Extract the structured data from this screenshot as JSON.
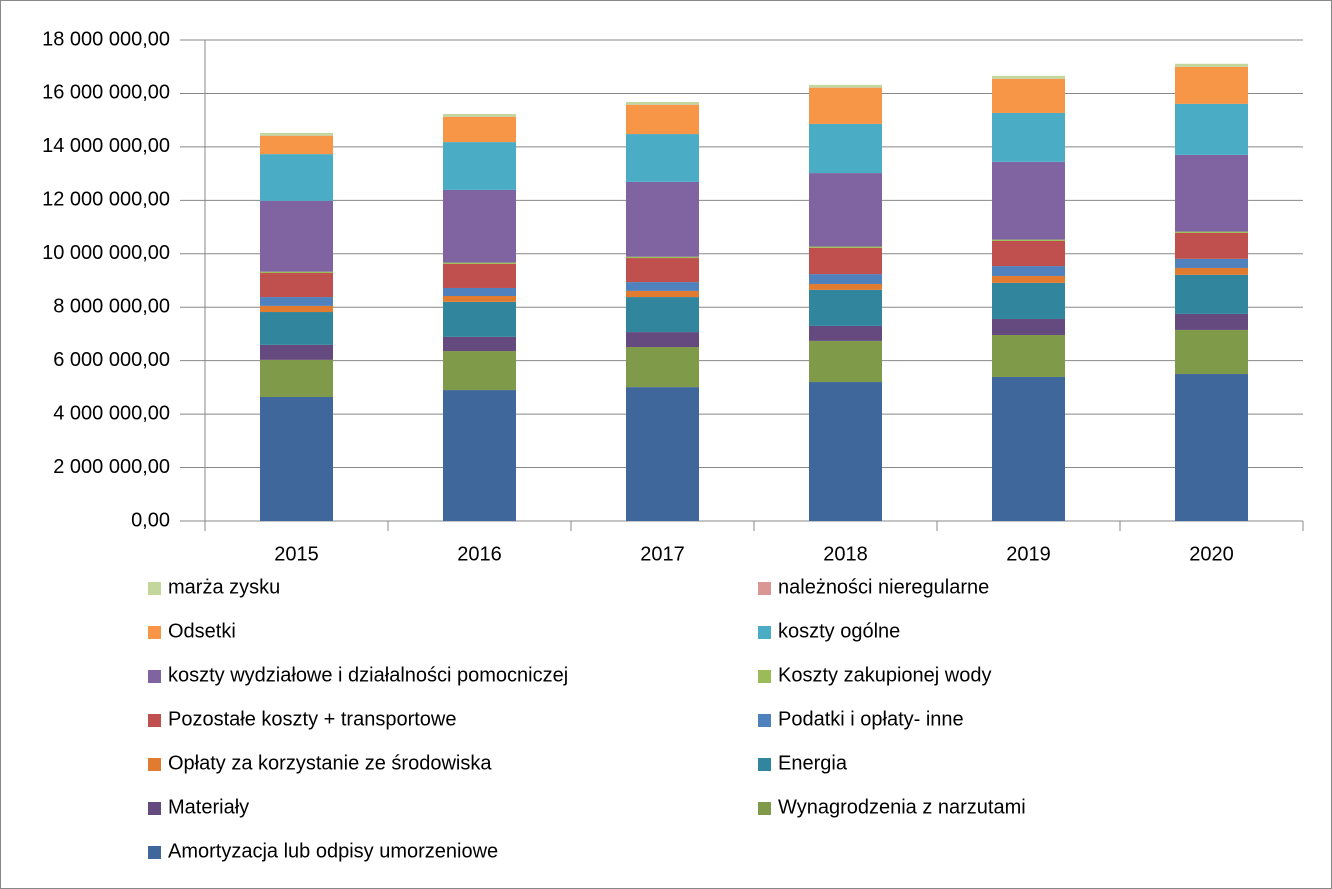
{
  "chart_data": {
    "type": "stacked_bar",
    "categories": [
      "2015",
      "2016",
      "2017",
      "2018",
      "2019",
      "2020"
    ],
    "ylim": [
      0,
      18000000
    ],
    "yticks": [
      {
        "value": 0,
        "label": "0,00"
      },
      {
        "value": 2000000,
        "label": "2 000 000,00"
      },
      {
        "value": 4000000,
        "label": "4 000 000,00"
      },
      {
        "value": 6000000,
        "label": "6 000 000,00"
      },
      {
        "value": 8000000,
        "label": "8 000 000,00"
      },
      {
        "value": 10000000,
        "label": "10 000 000,00"
      },
      {
        "value": 12000000,
        "label": "12 000 000,00"
      },
      {
        "value": 14000000,
        "label": "14 000 000,00"
      },
      {
        "value": 16000000,
        "label": "16 000 000,00"
      },
      {
        "value": 18000000,
        "label": "18 000 000,00"
      }
    ],
    "grid": true,
    "legend": "bottom",
    "series": [
      {
        "name": "Amortyzacja lub odpisy umorzeniowe",
        "color": "#3f679b",
        "values": [
          4640000,
          4900000,
          5010000,
          5200000,
          5390000,
          5500000
        ]
      },
      {
        "name": "Wynagrodzenia z narzutami",
        "color": "#7f9a48",
        "values": [
          1390000,
          1460000,
          1500000,
          1540000,
          1570000,
          1650000
        ]
      },
      {
        "name": "Materiały",
        "color": "#654a80",
        "values": [
          560000,
          530000,
          560000,
          560000,
          600000,
          600000
        ]
      },
      {
        "name": "Energia",
        "color": "#31859c",
        "values": [
          1230000,
          1310000,
          1310000,
          1350000,
          1350000,
          1460000
        ]
      },
      {
        "name": "Opłaty za korzystanie ze środowiska",
        "color": "#e07b2f",
        "values": [
          230000,
          220000,
          230000,
          220000,
          260000,
          260000
        ]
      },
      {
        "name": "Podatki i opłaty- inne",
        "color": "#4f81bd",
        "values": [
          330000,
          300000,
          330000,
          370000,
          370000,
          340000
        ]
      },
      {
        "name": "Pozostałe koszty + transportowe",
        "color": "#c0504d",
        "values": [
          900000,
          900000,
          900000,
          980000,
          940000,
          970000
        ]
      },
      {
        "name": "Koszty zakupionej wody",
        "color": "#9bbb59",
        "values": [
          50000,
          50000,
          50000,
          50000,
          50000,
          50000
        ]
      },
      {
        "name": "koszty wydziałowe i działalności pomocniczej",
        "color": "#8064a2",
        "values": [
          2650000,
          2720000,
          2800000,
          2750000,
          2910000,
          2870000
        ]
      },
      {
        "name": "koszty ogólne",
        "color": "#4bacc6",
        "values": [
          1750000,
          1790000,
          1790000,
          1840000,
          1830000,
          1910000
        ]
      },
      {
        "name": "Odsetki",
        "color": "#f79646",
        "values": [
          680000,
          940000,
          1090000,
          1350000,
          1270000,
          1380000
        ]
      },
      {
        "name": "należności nieregularne",
        "color": "#d99694",
        "values": [
          10000,
          10000,
          10000,
          10000,
          10000,
          10000
        ]
      },
      {
        "name": "marża zysku",
        "color": "#c3d69b",
        "values": [
          100000,
          100000,
          100000,
          100000,
          110000,
          110000
        ]
      }
    ]
  }
}
